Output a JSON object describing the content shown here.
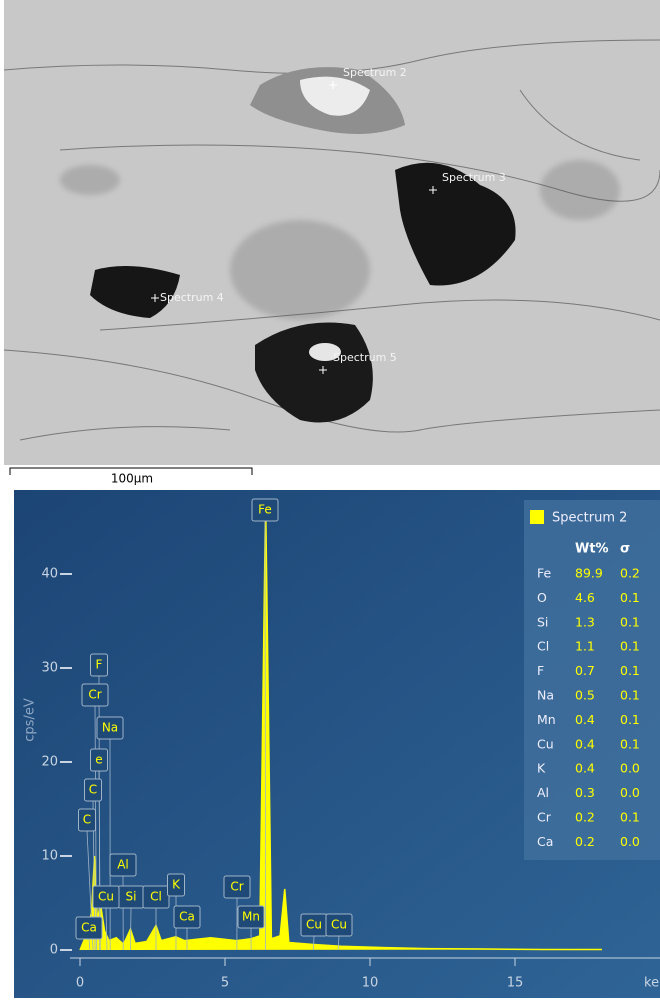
{
  "image": {
    "labels": [
      "Spectrum 2",
      "Spectrum 3",
      "Spectrum 4",
      "Spectrum 5"
    ],
    "scale_bar": "100µm"
  },
  "chart_data": {
    "type": "line",
    "x_label": "ke",
    "y_label": "cps/eV",
    "x": [
      0,
      0.2,
      0.4,
      0.5,
      0.6,
      0.7,
      0.85,
      1.0,
      1.25,
      1.5,
      1.74,
      1.9,
      2.3,
      2.62,
      2.8,
      3.3,
      3.6,
      4.5,
      5.4,
      5.9,
      6.2,
      6.4,
      6.6,
      6.9,
      7.06,
      7.2,
      8,
      9,
      10,
      12,
      14,
      16,
      18
    ],
    "series": [
      {
        "name": "Spectrum 2",
        "color": "#ffff00",
        "values": [
          0,
          1.5,
          4,
          10,
          3,
          5,
          2,
          1,
          1.3,
          0.6,
          2.2,
          0.7,
          0.9,
          2.6,
          1,
          1.4,
          1,
          1.3,
          1,
          1.2,
          1.5,
          48,
          1.2,
          1.5,
          6.5,
          0.8,
          0.6,
          0.4,
          0.3,
          0.15,
          0.1,
          0.05,
          0.05
        ]
      }
    ],
    "xlim": [
      0,
      20
    ],
    "xticks": [
      0,
      5,
      10,
      15
    ],
    "ylim": [
      -1,
      48
    ],
    "yticks": [
      0,
      10,
      20,
      30,
      40
    ],
    "peak_labels": [
      {
        "label": "Fe",
        "x": 6.4
      },
      {
        "label": "F",
        "x": 0.68
      },
      {
        "label": "Cr",
        "x": 0.57
      },
      {
        "label": "Na",
        "x": 1.04
      },
      {
        "label": "e",
        "x": 0.7
      },
      {
        "label": "C",
        "x": 0.52
      },
      {
        "label": "C",
        "x": 0.45
      },
      {
        "label": "Al",
        "x": 1.49
      },
      {
        "label": "Si",
        "x": 1.74
      },
      {
        "label": "Cl",
        "x": 2.62
      },
      {
        "label": "K",
        "x": 3.31
      },
      {
        "label": "Cu",
        "x": 0.93
      },
      {
        "label": "Cr",
        "x": 5.41
      },
      {
        "label": "Ca",
        "x": 3.69
      },
      {
        "label": "Mn",
        "x": 5.9
      },
      {
        "label": "Cu",
        "x": 8.05
      },
      {
        "label": "Cu",
        "x": 8.9
      },
      {
        "label": "Ca",
        "x": 0.34
      }
    ],
    "table": {
      "columns": [
        "Wt%",
        "σ"
      ],
      "rows": [
        [
          "Fe",
          "89.9",
          "0.2"
        ],
        [
          "O",
          "4.6",
          "0.1"
        ],
        [
          "Si",
          "1.3",
          "0.1"
        ],
        [
          "Cl",
          "1.1",
          "0.1"
        ],
        [
          "F",
          "0.7",
          "0.1"
        ],
        [
          "Na",
          "0.5",
          "0.1"
        ],
        [
          "Mn",
          "0.4",
          "0.1"
        ],
        [
          "Cu",
          "0.4",
          "0.1"
        ],
        [
          "K",
          "0.4",
          "0.0"
        ],
        [
          "Al",
          "0.3",
          "0.0"
        ],
        [
          "Cr",
          "0.2",
          "0.1"
        ],
        [
          "Ca",
          "0.2",
          "0.0"
        ]
      ]
    }
  }
}
